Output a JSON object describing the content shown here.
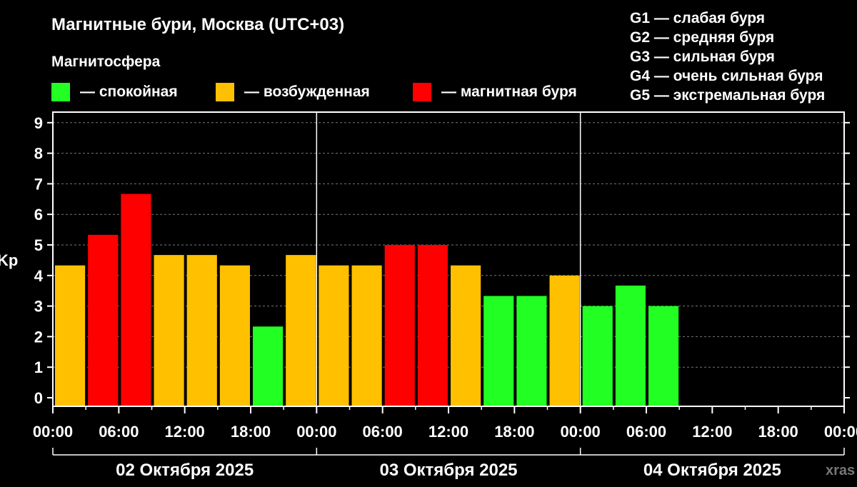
{
  "header": {
    "title": "Магнитные бури, Москва (UTC+03)",
    "subtitle": "Магнитосфера",
    "legend": [
      {
        "label": "— спокойная",
        "color": "#22ff22"
      },
      {
        "label": "— возбужденная",
        "color": "#ffc000"
      },
      {
        "label": "— магнитная буря",
        "color": "#ff0000"
      }
    ],
    "storm_scale": [
      "G1 — слабая буря",
      "G2 — средняя буря",
      "G3 — сильная буря",
      "G4 — очень сильная буря",
      "G5 — экстремальная буря"
    ],
    "watermark": "xras"
  },
  "chart_data": {
    "type": "bar",
    "ylabel": "Kp",
    "ylim": [
      0,
      9
    ],
    "yticks": [
      "0",
      "1",
      "2",
      "3",
      "4",
      "5",
      "6",
      "7",
      "8",
      "9"
    ],
    "xticks": [
      "00:00",
      "06:00",
      "12:00",
      "18:00",
      "00:00",
      "06:00",
      "12:00",
      "18:00",
      "00:00",
      "06:00",
      "12:00",
      "18:00",
      "00:00"
    ],
    "days": [
      "02 Октября 2025",
      "03 Октября 2025",
      "04 Октября 2025"
    ],
    "interval_hours": 3,
    "values": [
      4.33,
      5.33,
      6.67,
      4.67,
      4.67,
      4.33,
      2.33,
      4.67,
      4.33,
      4.33,
      5.0,
      5.0,
      4.33,
      3.33,
      3.33,
      4.0,
      3.0,
      3.67,
      3.0
    ],
    "colors": [
      "#ffc000",
      "#ff0000",
      "#ff0000",
      "#ffc000",
      "#ffc000",
      "#ffc000",
      "#22ff22",
      "#ffc000",
      "#ffc000",
      "#ffc000",
      "#ff0000",
      "#ff0000",
      "#ffc000",
      "#22ff22",
      "#22ff22",
      "#ffc000",
      "#22ff22",
      "#22ff22",
      "#22ff22"
    ],
    "grid": true
  }
}
